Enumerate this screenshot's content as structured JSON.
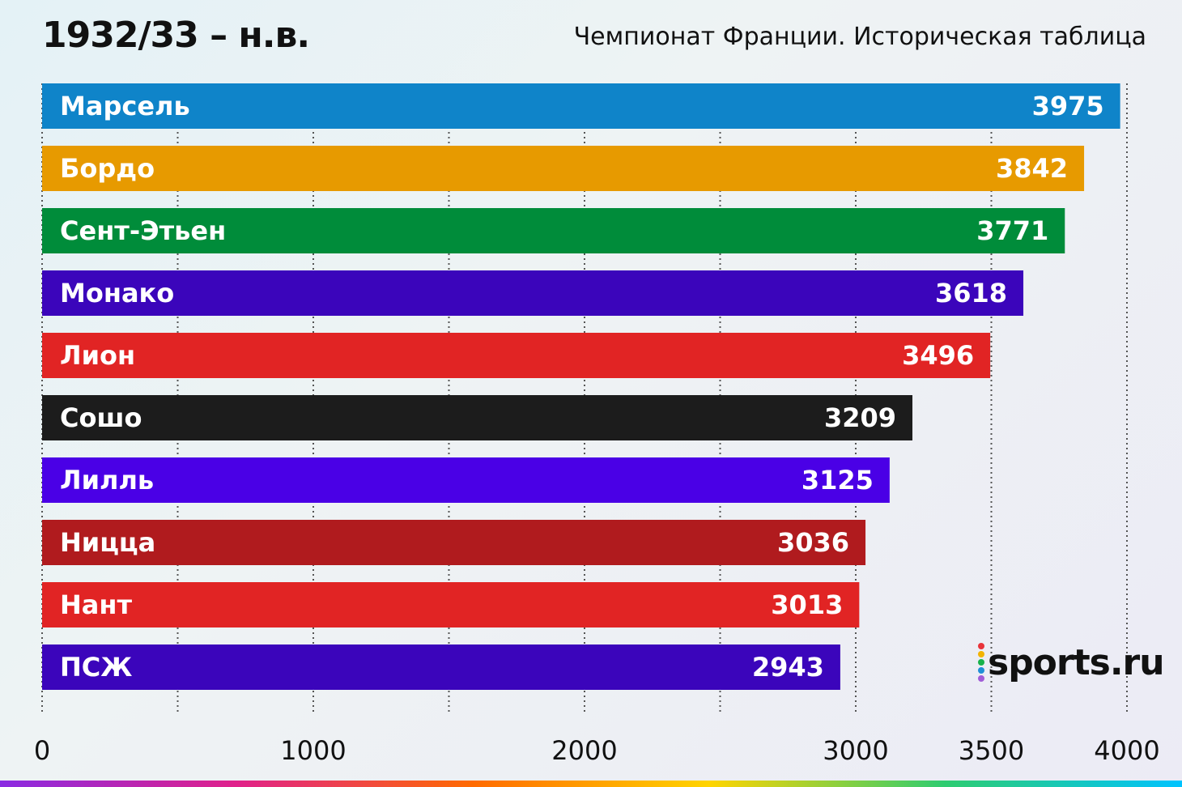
{
  "header": {
    "title": "1932/33 – н.в.",
    "subtitle": "Чемпионат Франции. Историческая таблица"
  },
  "brand": {
    "logo_text": "sports.ru",
    "dot_colors": [
      "#e8333a",
      "#f3b300",
      "#18b24b",
      "#1f8fd6",
      "#a05cd8"
    ]
  },
  "chart_data": {
    "type": "bar",
    "orientation": "horizontal",
    "title": "",
    "xlabel": "",
    "ylabel": "",
    "categories": [
      "Марсель",
      "Бордо",
      "Сент-Этьен",
      "Монако",
      "Лион",
      "Сошо",
      "Лилль",
      "Ницца",
      "Нант",
      "ПСЖ"
    ],
    "values": [
      3975,
      3842,
      3771,
      3618,
      3496,
      3209,
      3125,
      3036,
      3013,
      2943
    ],
    "colors": [
      "#0f84c9",
      "#e79a00",
      "#008c3a",
      "#3b05bb",
      "#e12424",
      "#1c1c1c",
      "#4a00e6",
      "#b01b1e",
      "#e12424",
      "#3b05bb"
    ],
    "xlim": [
      0,
      4000
    ],
    "x_ticks": [
      0,
      1000,
      2000,
      3000,
      3500,
      4000
    ],
    "grid": true
  }
}
